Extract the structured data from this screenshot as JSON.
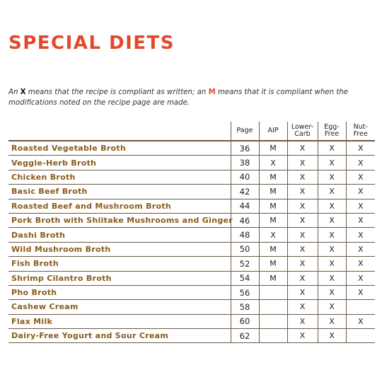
{
  "title": "SPECIAL DIETS",
  "legend": {
    "part1": "An ",
    "x_mark": "X",
    "part2": " means that the recipe is compliant as written; an ",
    "m_mark": "M",
    "part3": " means that it is compliant when the modifications noted on the recipe page are made."
  },
  "colors": {
    "accent": "#e2492c",
    "recipe_text": "#8a5b1d",
    "rules": "#6b5a45"
  },
  "headers": {
    "page": "Page",
    "aip": "AIP",
    "lower_carb": [
      "Lower-",
      "Carb"
    ],
    "egg_free": [
      "Egg-",
      "Free"
    ],
    "nut_free": [
      "Nut-",
      "Free"
    ]
  },
  "rows": [
    {
      "recipe": "Roasted Vegetable Broth",
      "page": "36",
      "aip": "M",
      "lower_carb": "X",
      "egg_free": "X",
      "nut_free": "X"
    },
    {
      "recipe": "Veggie-Herb Broth",
      "page": "38",
      "aip": "X",
      "lower_carb": "X",
      "egg_free": "X",
      "nut_free": "X"
    },
    {
      "recipe": "Chicken Broth",
      "page": "40",
      "aip": "M",
      "lower_carb": "X",
      "egg_free": "X",
      "nut_free": "X"
    },
    {
      "recipe": "Basic Beef Broth",
      "page": "42",
      "aip": "M",
      "lower_carb": "X",
      "egg_free": "X",
      "nut_free": "X"
    },
    {
      "recipe": "Roasted Beef and Mushroom Broth",
      "page": "44",
      "aip": "M",
      "lower_carb": "X",
      "egg_free": "X",
      "nut_free": "X"
    },
    {
      "recipe": "Pork Broth with Shiitake Mushrooms and Ginger",
      "page": "46",
      "aip": "M",
      "lower_carb": "X",
      "egg_free": "X",
      "nut_free": "X"
    },
    {
      "recipe": "Dashi Broth",
      "page": "48",
      "aip": "X",
      "lower_carb": "X",
      "egg_free": "X",
      "nut_free": "X"
    },
    {
      "recipe": "Wild Mushroom Broth",
      "page": "50",
      "aip": "M",
      "lower_carb": "X",
      "egg_free": "X",
      "nut_free": "X"
    },
    {
      "recipe": "Fish Broth",
      "page": "52",
      "aip": "M",
      "lower_carb": "X",
      "egg_free": "X",
      "nut_free": "X"
    },
    {
      "recipe": "Shrimp Cilantro Broth",
      "page": "54",
      "aip": "M",
      "lower_carb": "X",
      "egg_free": "X",
      "nut_free": "X"
    },
    {
      "recipe": "Pho Broth",
      "page": "56",
      "aip": "",
      "lower_carb": "X",
      "egg_free": "X",
      "nut_free": "X"
    },
    {
      "recipe": "Cashew Cream",
      "page": "58",
      "aip": "",
      "lower_carb": "X",
      "egg_free": "X",
      "nut_free": ""
    },
    {
      "recipe": "Flax Milk",
      "page": "60",
      "aip": "",
      "lower_carb": "X",
      "egg_free": "X",
      "nut_free": "X"
    },
    {
      "recipe": "Dairy-Free Yogurt and Sour Cream",
      "page": "62",
      "aip": "",
      "lower_carb": "X",
      "egg_free": "X",
      "nut_free": ""
    }
  ]
}
